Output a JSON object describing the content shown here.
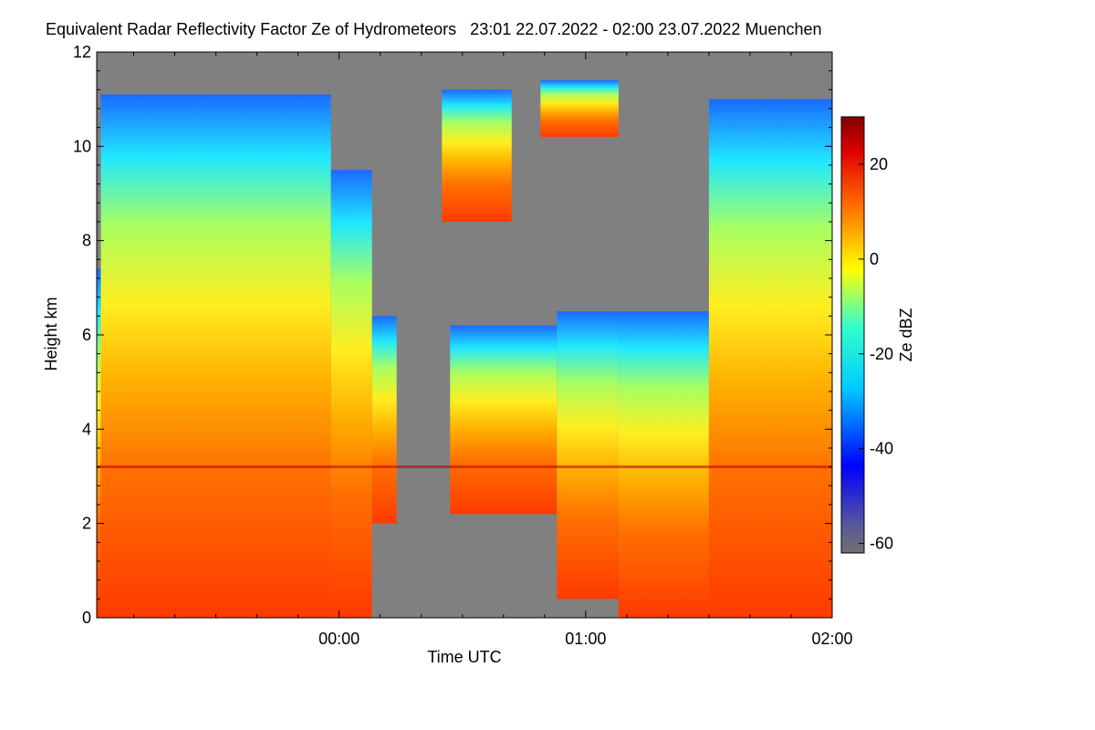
{
  "chart_data": {
    "type": "heatmap",
    "title": "Equivalent Radar Reflectivity Factor Ze of Hydrometeors   23:01 22.07.2022 - 02:00 23.07.2022 Muenchen",
    "xlabel": "Time UTC",
    "ylabel": "Height km",
    "x_range": [
      "23:01",
      "02:00"
    ],
    "x_ticks": [
      "00:00",
      "01:00",
      "02:00"
    ],
    "ylim": [
      0,
      12
    ],
    "y_ticks": [
      0,
      2,
      4,
      6,
      8,
      10,
      12
    ],
    "colorbar": {
      "label": "Ze dBZ",
      "range": [
        -62,
        30
      ],
      "ticks": [
        -60,
        -40,
        -20,
        0,
        20
      ]
    },
    "background_color": "#808080",
    "echo_regions": [
      {
        "t_start": "23:01",
        "t_end": "23:02",
        "height_bottom_km": 0,
        "height_top_km": 7.4
      },
      {
        "t_start": "23:02",
        "t_end": "23:58",
        "height_bottom_km": 0,
        "height_top_km": 11.1
      },
      {
        "t_start": "23:58",
        "t_end": "00:08",
        "height_bottom_km": 0,
        "height_top_km": 9.5
      },
      {
        "t_start": "00:08",
        "t_end": "00:14",
        "height_bottom_km": 2.0,
        "height_top_km": 6.4
      },
      {
        "t_start": "00:27",
        "t_end": "00:53",
        "height_bottom_km": 2.2,
        "height_top_km": 6.2
      },
      {
        "t_start": "00:53",
        "t_end": "01:08",
        "height_bottom_km": 0.4,
        "height_top_km": 6.5
      },
      {
        "t_start": "01:08",
        "t_end": "01:30",
        "height_bottom_km": 0,
        "height_top_km": 6.5
      },
      {
        "t_start": "01:30",
        "t_end": "02:00",
        "height_bottom_km": 0,
        "height_top_km": 11.0
      },
      {
        "t_start": "00:25",
        "t_end": "00:42",
        "height_bottom_km": 8.4,
        "height_top_km": 11.2
      },
      {
        "t_start": "00:49",
        "t_end": "01:08",
        "height_bottom_km": 10.2,
        "height_top_km": 11.4
      }
    ],
    "bright_band_height_km": 3.2
  }
}
